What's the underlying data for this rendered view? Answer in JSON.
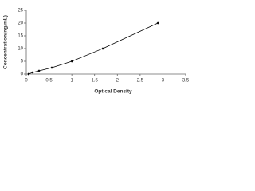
{
  "chart_data": {
    "type": "scatter",
    "x_label": "Optical Density",
    "y_label": "Concentration(ng/mL)",
    "x": [
      0.05,
      0.14,
      0.28,
      0.56,
      1.0,
      1.68,
      2.89
    ],
    "values": [
      0,
      0.625,
      1.25,
      2.5,
      5,
      10,
      20
    ],
    "color": "#000000",
    "line": true,
    "xlim": [
      0,
      3.5
    ],
    "xticks": [
      0,
      0.5,
      1,
      1.5,
      2,
      2.5,
      3,
      3.5
    ],
    "ylim": [
      0,
      25
    ],
    "yticks": [
      0,
      5,
      10,
      15,
      20,
      25
    ]
  }
}
